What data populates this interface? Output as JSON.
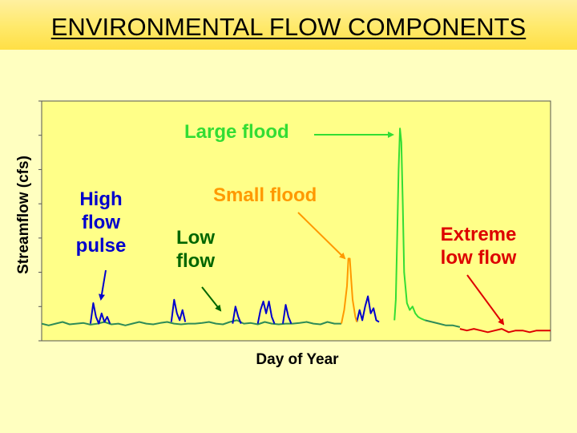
{
  "page": {
    "title": "ENVIRONMENTAL FLOW COMPONENTS"
  },
  "chart_data": {
    "type": "line",
    "title": "",
    "xlabel": "Day of Year",
    "ylabel": "Streamflow (cfs)",
    "xlim": [
      0,
      365
    ],
    "ylim": [
      0,
      7
    ],
    "grid": false,
    "y_tick_labels": "none",
    "annotations": [
      {
        "key": "high_pulse",
        "text": [
          "High",
          "flow",
          "pulse"
        ],
        "color": "#0000CC"
      },
      {
        "key": "low_flow",
        "text": [
          "Low",
          "flow"
        ],
        "color": "#006600"
      },
      {
        "key": "small_flood",
        "text": [
          "Small flood"
        ],
        "color": "#FF9900"
      },
      {
        "key": "large_flood",
        "text": [
          "Large flood"
        ],
        "color": "#33DD33"
      },
      {
        "key": "extreme_low",
        "text": [
          "Extreme",
          "low flow"
        ],
        "color": "#DD0000"
      }
    ],
    "series": [
      {
        "key": "low",
        "color": "#2E8B57",
        "x": [
          0,
          5,
          10,
          15,
          20,
          25,
          30,
          35,
          40,
          45,
          50,
          55,
          60,
          65,
          70,
          75,
          80,
          85,
          90,
          95,
          100,
          105,
          110,
          115,
          120,
          125,
          130,
          135,
          140,
          145,
          150,
          155,
          160,
          165,
          170,
          175,
          180,
          185,
          190,
          195,
          200,
          205,
          210,
          215
        ],
        "y": [
          0.5,
          0.45,
          0.5,
          0.55,
          0.48,
          0.5,
          0.52,
          0.47,
          0.5,
          0.55,
          0.48,
          0.5,
          0.45,
          0.5,
          0.55,
          0.5,
          0.48,
          0.52,
          0.55,
          0.5,
          0.48,
          0.5,
          0.5,
          0.52,
          0.55,
          0.5,
          0.48,
          0.55,
          0.6,
          0.5,
          0.52,
          0.48,
          0.55,
          0.5,
          0.48,
          0.5,
          0.5,
          0.52,
          0.55,
          0.5,
          0.48,
          0.55,
          0.5,
          0.5
        ]
      },
      {
        "key": "pulse",
        "color": "#0000CC",
        "x": [
          35,
          37,
          39,
          41,
          43,
          45,
          47,
          49
        ],
        "y": [
          0.5,
          1.1,
          0.7,
          0.5,
          0.8,
          0.55,
          0.7,
          0.5
        ]
      },
      {
        "key": "pulse",
        "color": "#0000CC",
        "x": [
          93,
          95,
          97,
          99,
          101,
          103
        ],
        "y": [
          0.55,
          1.2,
          0.8,
          0.6,
          0.9,
          0.55
        ]
      },
      {
        "key": "pulse",
        "color": "#0000CC",
        "x": [
          137,
          139,
          141,
          143
        ],
        "y": [
          0.5,
          1.0,
          0.7,
          0.5
        ]
      },
      {
        "key": "pulse",
        "color": "#0000CC",
        "x": [
          155,
          157,
          159,
          161,
          163,
          165,
          167
        ],
        "y": [
          0.5,
          0.9,
          1.15,
          0.8,
          1.15,
          0.7,
          0.5
        ]
      },
      {
        "key": "pulse",
        "color": "#0000CC",
        "x": [
          173,
          175,
          177,
          179
        ],
        "y": [
          0.5,
          1.05,
          0.7,
          0.5
        ]
      },
      {
        "key": "pulse",
        "color": "#0000CC",
        "x": [
          226,
          228,
          230,
          232,
          234,
          236,
          238,
          240,
          242
        ],
        "y": [
          0.55,
          0.9,
          0.6,
          1.0,
          1.3,
          0.8,
          0.95,
          0.6,
          0.55
        ]
      },
      {
        "key": "small",
        "color": "#FF9900",
        "x": [
          215,
          217,
          219,
          220,
          221,
          222,
          223,
          225,
          226
        ],
        "y": [
          0.5,
          0.9,
          1.6,
          2.4,
          2.4,
          1.8,
          1.2,
          0.7,
          0.55
        ]
      },
      {
        "key": "large",
        "color": "#33DD33",
        "x": [
          253,
          254,
          255,
          256,
          257,
          258,
          259,
          260,
          262,
          264,
          266,
          268,
          270,
          272,
          275
        ],
        "y": [
          0.6,
          1.2,
          3.0,
          5.0,
          6.2,
          5.8,
          4.0,
          2.0,
          1.1,
          0.9,
          1.0,
          0.8,
          0.7,
          0.65,
          0.6
        ]
      },
      {
        "key": "low",
        "color": "#2E8B57",
        "x": [
          275,
          280,
          285,
          290,
          295,
          300
        ],
        "y": [
          0.6,
          0.55,
          0.5,
          0.45,
          0.45,
          0.4
        ]
      },
      {
        "key": "extreme",
        "color": "#DD0000",
        "x": [
          300,
          305,
          310,
          315,
          320,
          325,
          330,
          335,
          340,
          345,
          350,
          355,
          360,
          365
        ],
        "y": [
          0.35,
          0.3,
          0.35,
          0.3,
          0.25,
          0.3,
          0.35,
          0.25,
          0.3,
          0.3,
          0.25,
          0.3,
          0.3,
          0.3
        ]
      }
    ]
  }
}
